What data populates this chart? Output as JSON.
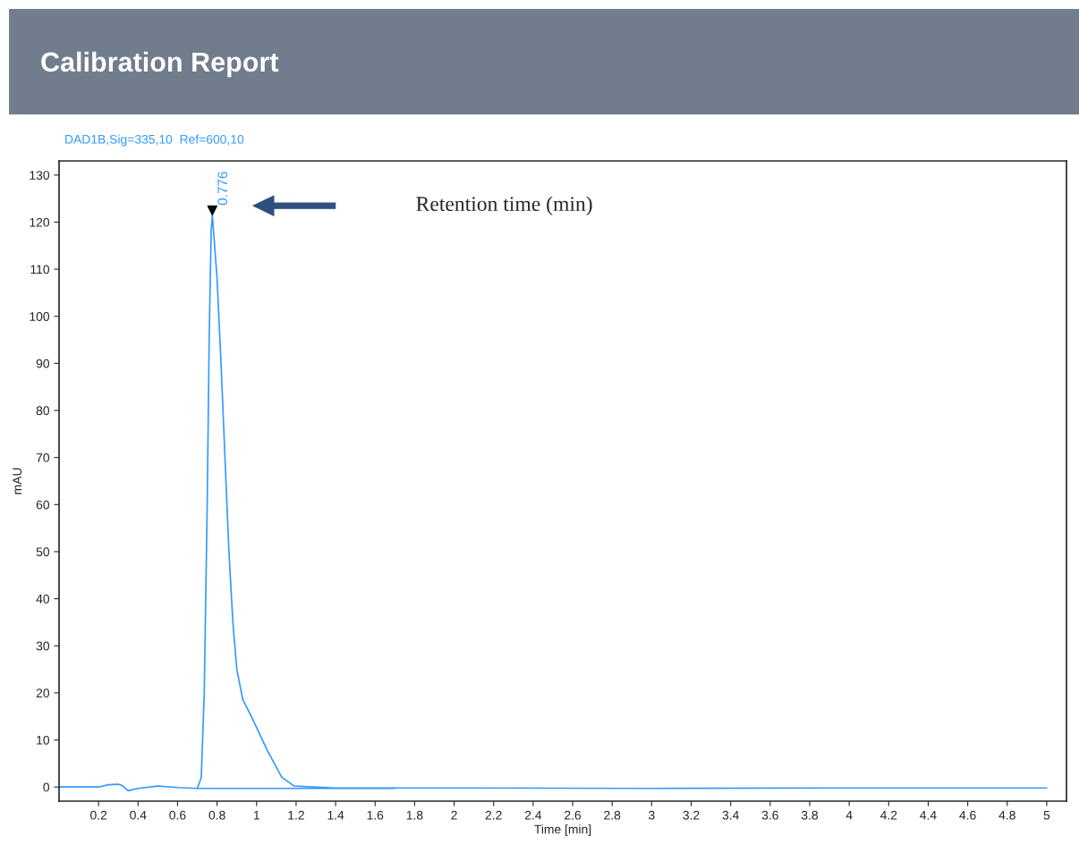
{
  "chart_data": {
    "type": "line",
    "title": "Calibration Report",
    "subtitle": "DAD1B,Sig=335,10  Ref=600,10",
    "xlabel": "Time [min]",
    "ylabel": "mAU",
    "series": [
      {
        "color": "#3399ff",
        "x": [
          0,
          0.1,
          0.2,
          0.25,
          0.3,
          0.32,
          0.35,
          0.4,
          0.5,
          0.6,
          0.7,
          0.72,
          0.735,
          0.75,
          0.76,
          0.77,
          0.776,
          0.8,
          0.82,
          0.84,
          0.86,
          0.88,
          0.9,
          0.93,
          0.976,
          1.054,
          1.127,
          1.19,
          1.4,
          2,
          3,
          4,
          5
        ],
        "values": [
          0,
          0,
          0,
          0.5,
          0.6,
          0.3,
          -0.8,
          -0.3,
          0.2,
          -0.1,
          -0.3,
          2,
          20,
          60,
          95,
          118,
          121.5,
          108,
          90,
          70,
          50,
          35,
          25,
          18.6,
          14.8,
          7.8,
          2.1,
          0.2,
          -0.2,
          -0.2,
          -0.3,
          -0.2,
          -0.2
        ]
      },
      {
        "color": "#3399ff",
        "x": [
          0.7,
          1.7
        ],
        "values": [
          -0.3,
          -0.3
        ]
      },
      {
        "type": "scatter",
        "color": "#000000",
        "marker": "triangle",
        "x": [
          0.776
        ],
        "values": [
          122.5
        ]
      }
    ],
    "annotations": [
      {
        "text": "0.776",
        "x": 0.776,
        "y": 122.5
      },
      "Retention time (min)"
    ],
    "xlim": [
      0,
      5.1
    ],
    "ylim": [
      -3,
      133
    ],
    "xticks": [
      0.2,
      0.4,
      0.6,
      0.8,
      1,
      1.2,
      1.4,
      1.6,
      1.8,
      2,
      2.2,
      2.4,
      2.6,
      2.8,
      3,
      3.2,
      3.4,
      3.6,
      3.8,
      4,
      4.2,
      4.4,
      4.6,
      4.8,
      5
    ],
    "yticks": [
      0,
      10,
      20,
      30,
      40,
      50,
      60,
      70,
      80,
      90,
      100,
      110,
      120,
      130
    ],
    "grid": false,
    "legend": false
  }
}
